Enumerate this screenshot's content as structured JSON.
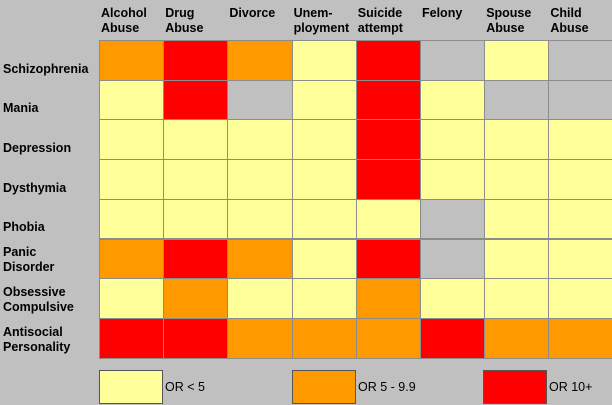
{
  "chart_data": {
    "type": "heatmap",
    "columns": [
      "Alcohol\nAbuse",
      "Drug\nAbuse",
      "Divorce",
      "Unem-\nployment",
      "Suicide\nattempt",
      "Felony",
      "Spouse\nAbuse",
      "Child\nAbuse"
    ],
    "rows": [
      "Schizophrenia",
      "Mania",
      "Depression",
      "Dysthymia",
      "Phobia",
      "Panic\nDisorder",
      "Obsessive\nCompulsive",
      "Antisocial\nPersonality"
    ],
    "levels": {
      "low": {
        "label": "OR < 5",
        "color": "#ffff99"
      },
      "mid": {
        "label": "OR  5 - 9.9",
        "color": "#ff9900"
      },
      "high": {
        "label": "OR 10+",
        "color": "#ff0000"
      },
      "none": {
        "label": "",
        "color": "#c0c0c0"
      }
    },
    "cells": [
      [
        "mid",
        "high",
        "mid",
        "low",
        "high",
        "none",
        "low",
        "none"
      ],
      [
        "low",
        "high",
        "none",
        "low",
        "high",
        "low",
        "none",
        "none"
      ],
      [
        "low",
        "low",
        "low",
        "low",
        "high",
        "low",
        "low",
        "low"
      ],
      [
        "low",
        "low",
        "low",
        "low",
        "high",
        "low",
        "low",
        "low"
      ],
      [
        "low",
        "low",
        "low",
        "low",
        "low",
        "none",
        "low",
        "low"
      ],
      [
        "mid",
        "high",
        "mid",
        "low",
        "high",
        "none",
        "low",
        "low"
      ],
      [
        "low",
        "mid",
        "low",
        "low",
        "mid",
        "low",
        "low",
        "low"
      ],
      [
        "high",
        "high",
        "mid",
        "mid",
        "mid",
        "high",
        "mid",
        "mid"
      ]
    ],
    "legend": [
      "low",
      "mid",
      "high"
    ]
  }
}
